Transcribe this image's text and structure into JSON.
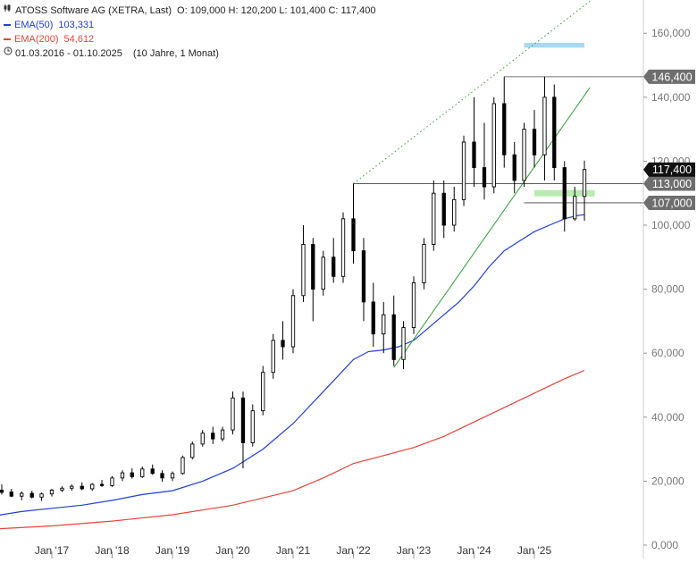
{
  "header": {
    "title": "ATOSS Software AG (XETRA, Last)",
    "ohlc": "O: 109,000  H: 120,200  L: 101,400  C: 117,400",
    "ema50_label": "EMA(50)",
    "ema50_value": "103,331",
    "ema200_label": "EMA(200)",
    "ema200_value": "54,612",
    "period": "01.03.2016 - 01.10.2025",
    "period_note": "(10 Jahre, 1 Monat)"
  },
  "colors": {
    "ema50": "#1f3fd6",
    "ema200": "#e8443a",
    "trend": "#2ca02c",
    "candle": "#000000",
    "zone_green": "#b8ecb0",
    "zone_blue": "#a8d8f4",
    "badge_grey": "#6e6e6e",
    "badge_black": "#111111"
  },
  "chart_data": {
    "type": "candlestick",
    "title": "ATOSS Software AG (XETRA, Last)",
    "ylim": [
      0,
      170
    ],
    "y_ticks": [
      0,
      20,
      40,
      60,
      80,
      100,
      120,
      140,
      160
    ],
    "y_tick_labels": [
      "0,000",
      "20,000",
      "40,000",
      "60,000",
      "80,000",
      "100,000",
      "120,000",
      "140,000",
      "160,000"
    ],
    "x_range": [
      2016.17,
      2025.92
    ],
    "x_ticks": [
      2017,
      2018,
      2019,
      2020,
      2021,
      2022,
      2023,
      2024,
      2025
    ],
    "x_tick_labels": [
      "Jan '17",
      "Jan '18",
      "Jan '19",
      "Jan '20",
      "Jan '21",
      "Jan '22",
      "Jan '23",
      "Jan '24",
      "Jan '25"
    ],
    "candles": [
      {
        "t": 2016.17,
        "o": 17.2,
        "h": 19.0,
        "l": 15.8,
        "c": 16.5
      },
      {
        "t": 2016.33,
        "o": 16.6,
        "h": 17.6,
        "l": 15.0,
        "c": 15.3
      },
      {
        "t": 2016.5,
        "o": 15.3,
        "h": 16.8,
        "l": 14.0,
        "c": 16.2
      },
      {
        "t": 2016.67,
        "o": 16.2,
        "h": 17.0,
        "l": 14.6,
        "c": 15.0
      },
      {
        "t": 2016.83,
        "o": 15.0,
        "h": 16.4,
        "l": 13.8,
        "c": 16.0
      },
      {
        "t": 2017.0,
        "o": 16.0,
        "h": 17.6,
        "l": 15.2,
        "c": 17.2
      },
      {
        "t": 2017.17,
        "o": 17.2,
        "h": 18.4,
        "l": 16.6,
        "c": 17.8
      },
      {
        "t": 2017.33,
        "o": 17.8,
        "h": 19.0,
        "l": 17.0,
        "c": 18.4
      },
      {
        "t": 2017.5,
        "o": 18.4,
        "h": 19.6,
        "l": 17.2,
        "c": 17.6
      },
      {
        "t": 2017.67,
        "o": 17.6,
        "h": 19.4,
        "l": 17.0,
        "c": 19.0
      },
      {
        "t": 2017.83,
        "o": 19.0,
        "h": 20.4,
        "l": 18.2,
        "c": 18.6
      },
      {
        "t": 2018.0,
        "o": 18.6,
        "h": 21.6,
        "l": 18.2,
        "c": 21.0
      },
      {
        "t": 2018.17,
        "o": 21.0,
        "h": 23.4,
        "l": 20.0,
        "c": 22.6
      },
      {
        "t": 2018.33,
        "o": 22.6,
        "h": 24.0,
        "l": 20.8,
        "c": 21.4
      },
      {
        "t": 2018.5,
        "o": 21.4,
        "h": 24.6,
        "l": 21.0,
        "c": 23.8
      },
      {
        "t": 2018.67,
        "o": 23.8,
        "h": 25.2,
        "l": 22.0,
        "c": 22.4
      },
      {
        "t": 2018.83,
        "o": 22.4,
        "h": 23.4,
        "l": 19.8,
        "c": 21.0
      },
      {
        "t": 2019.0,
        "o": 21.0,
        "h": 23.0,
        "l": 20.0,
        "c": 22.4
      },
      {
        "t": 2019.17,
        "o": 22.4,
        "h": 28.0,
        "l": 22.0,
        "c": 27.4
      },
      {
        "t": 2019.33,
        "o": 27.4,
        "h": 32.4,
        "l": 26.8,
        "c": 31.6
      },
      {
        "t": 2019.5,
        "o": 31.6,
        "h": 36.0,
        "l": 30.8,
        "c": 35.0
      },
      {
        "t": 2019.67,
        "o": 35.0,
        "h": 37.0,
        "l": 31.6,
        "c": 33.2
      },
      {
        "t": 2019.83,
        "o": 33.2,
        "h": 37.0,
        "l": 32.4,
        "c": 36.0
      },
      {
        "t": 2020.0,
        "o": 36.0,
        "h": 48.0,
        "l": 34.6,
        "c": 46.0
      },
      {
        "t": 2020.17,
        "o": 46.0,
        "h": 48.0,
        "l": 24.0,
        "c": 32.0
      },
      {
        "t": 2020.33,
        "o": 32.0,
        "h": 44.0,
        "l": 30.8,
        "c": 42.0
      },
      {
        "t": 2020.5,
        "o": 42.0,
        "h": 56.0,
        "l": 40.6,
        "c": 54.0
      },
      {
        "t": 2020.67,
        "o": 54.0,
        "h": 66.0,
        "l": 52.0,
        "c": 64.0
      },
      {
        "t": 2020.83,
        "o": 64.0,
        "h": 70.0,
        "l": 58.0,
        "c": 62.0
      },
      {
        "t": 2021.0,
        "o": 62.0,
        "h": 80.0,
        "l": 60.0,
        "c": 78.0
      },
      {
        "t": 2021.17,
        "o": 78.0,
        "h": 100.0,
        "l": 76.0,
        "c": 94.0
      },
      {
        "t": 2021.33,
        "o": 94.0,
        "h": 96.0,
        "l": 70.0,
        "c": 80.0
      },
      {
        "t": 2021.5,
        "o": 80.0,
        "h": 92.0,
        "l": 78.0,
        "c": 90.0
      },
      {
        "t": 2021.67,
        "o": 90.0,
        "h": 96.0,
        "l": 82.0,
        "c": 84.0
      },
      {
        "t": 2021.83,
        "o": 84.0,
        "h": 104.0,
        "l": 82.0,
        "c": 102.0
      },
      {
        "t": 2022.0,
        "o": 102.0,
        "h": 113.0,
        "l": 88.0,
        "c": 92.0
      },
      {
        "t": 2022.17,
        "o": 92.0,
        "h": 96.0,
        "l": 70.0,
        "c": 76.0
      },
      {
        "t": 2022.33,
        "o": 76.0,
        "h": 82.0,
        "l": 62.0,
        "c": 66.0
      },
      {
        "t": 2022.5,
        "o": 66.0,
        "h": 76.0,
        "l": 60.0,
        "c": 72.0
      },
      {
        "t": 2022.67,
        "o": 72.0,
        "h": 78.0,
        "l": 56.0,
        "c": 58.0
      },
      {
        "t": 2022.83,
        "o": 58.0,
        "h": 70.0,
        "l": 55.0,
        "c": 68.0
      },
      {
        "t": 2023.0,
        "o": 68.0,
        "h": 84.0,
        "l": 66.0,
        "c": 82.0
      },
      {
        "t": 2023.17,
        "o": 82.0,
        "h": 96.0,
        "l": 80.0,
        "c": 94.0
      },
      {
        "t": 2023.33,
        "o": 94.0,
        "h": 114.0,
        "l": 92.0,
        "c": 110.0
      },
      {
        "t": 2023.5,
        "o": 110.0,
        "h": 114.0,
        "l": 96.0,
        "c": 100.0
      },
      {
        "t": 2023.67,
        "o": 100.0,
        "h": 112.0,
        "l": 98.0,
        "c": 108.0
      },
      {
        "t": 2023.83,
        "o": 108.0,
        "h": 128.0,
        "l": 106.0,
        "c": 126.0
      },
      {
        "t": 2024.0,
        "o": 126.0,
        "h": 140.0,
        "l": 112.0,
        "c": 118.0
      },
      {
        "t": 2024.17,
        "o": 118.0,
        "h": 132.0,
        "l": 108.0,
        "c": 112.0
      },
      {
        "t": 2024.33,
        "o": 112.0,
        "h": 140.0,
        "l": 110.0,
        "c": 138.0
      },
      {
        "t": 2024.5,
        "o": 138.0,
        "h": 146.4,
        "l": 118.0,
        "c": 122.0
      },
      {
        "t": 2024.67,
        "o": 122.0,
        "h": 126.0,
        "l": 110.0,
        "c": 114.0
      },
      {
        "t": 2024.83,
        "o": 114.0,
        "h": 132.0,
        "l": 112.0,
        "c": 130.0
      },
      {
        "t": 2025.0,
        "o": 130.0,
        "h": 136.0,
        "l": 118.0,
        "c": 122.0
      },
      {
        "t": 2025.17,
        "o": 122.0,
        "h": 146.4,
        "l": 114.0,
        "c": 140.0
      },
      {
        "t": 2025.33,
        "o": 140.0,
        "h": 144.0,
        "l": 114.0,
        "c": 118.0
      },
      {
        "t": 2025.5,
        "o": 118.0,
        "h": 120.0,
        "l": 98.0,
        "c": 102.0
      },
      {
        "t": 2025.67,
        "o": 102.0,
        "h": 112.0,
        "l": 101.4,
        "c": 109.0
      },
      {
        "t": 2025.83,
        "o": 109.0,
        "h": 120.2,
        "l": 101.4,
        "c": 117.4
      }
    ],
    "series": [
      {
        "name": "EMA(50)",
        "color": "#1f3fd6",
        "points": [
          [
            2016.0,
            9
          ],
          [
            2016.5,
            10.5
          ],
          [
            2017.0,
            11.5
          ],
          [
            2017.5,
            12.5
          ],
          [
            2018.0,
            14
          ],
          [
            2018.5,
            15.8
          ],
          [
            2019.0,
            17
          ],
          [
            2019.5,
            20
          ],
          [
            2020.0,
            24
          ],
          [
            2020.5,
            30
          ],
          [
            2021.0,
            38
          ],
          [
            2021.5,
            48
          ],
          [
            2022.0,
            58
          ],
          [
            2022.25,
            60.5
          ],
          [
            2022.5,
            61
          ],
          [
            2022.75,
            62
          ],
          [
            2023.0,
            64
          ],
          [
            2023.25,
            68
          ],
          [
            2023.5,
            72
          ],
          [
            2023.75,
            76
          ],
          [
            2024.0,
            81
          ],
          [
            2024.25,
            87
          ],
          [
            2024.5,
            92
          ],
          [
            2024.75,
            95
          ],
          [
            2025.0,
            98
          ],
          [
            2025.25,
            100
          ],
          [
            2025.5,
            102
          ],
          [
            2025.7,
            103
          ],
          [
            2025.83,
            103.3
          ]
        ]
      },
      {
        "name": "EMA(200)",
        "color": "#e8443a",
        "points": [
          [
            2016.0,
            5
          ],
          [
            2017.0,
            6
          ],
          [
            2018.0,
            7.5
          ],
          [
            2019.0,
            9.5
          ],
          [
            2020.0,
            12.5
          ],
          [
            2021.0,
            17
          ],
          [
            2021.5,
            21
          ],
          [
            2022.0,
            25.5
          ],
          [
            2022.5,
            28
          ],
          [
            2023.0,
            30.5
          ],
          [
            2023.5,
            34
          ],
          [
            2024.0,
            38.5
          ],
          [
            2024.5,
            43
          ],
          [
            2025.0,
            47.5
          ],
          [
            2025.5,
            52
          ],
          [
            2025.83,
            54.6
          ]
        ]
      }
    ],
    "annotations": {
      "trend_lower": [
        [
          2022.67,
          55.5
        ],
        [
          2025.92,
          143.0
        ]
      ],
      "trend_upper": [
        [
          2022.0,
          113.0
        ],
        [
          2025.92,
          170.0
        ]
      ],
      "h_lines": [
        {
          "y": 146.4,
          "x_from": 2024.5,
          "label": "146,400"
        },
        {
          "y": 113.0,
          "x_from": 2022.0,
          "label": "113,000"
        },
        {
          "y": 107.0,
          "x_from": 2024.83,
          "label": "107,000"
        }
      ],
      "last_price": {
        "y": 117.4,
        "label": "117,400"
      },
      "zone_green": {
        "x_from": 2025.0,
        "x_to": 2026.0,
        "y_from": 109.0,
        "y_to": 111.0
      },
      "zone_blue": {
        "x_from": 2024.83,
        "x_to": 2025.83,
        "y_from": 155.5,
        "y_to": 157.0
      }
    }
  }
}
